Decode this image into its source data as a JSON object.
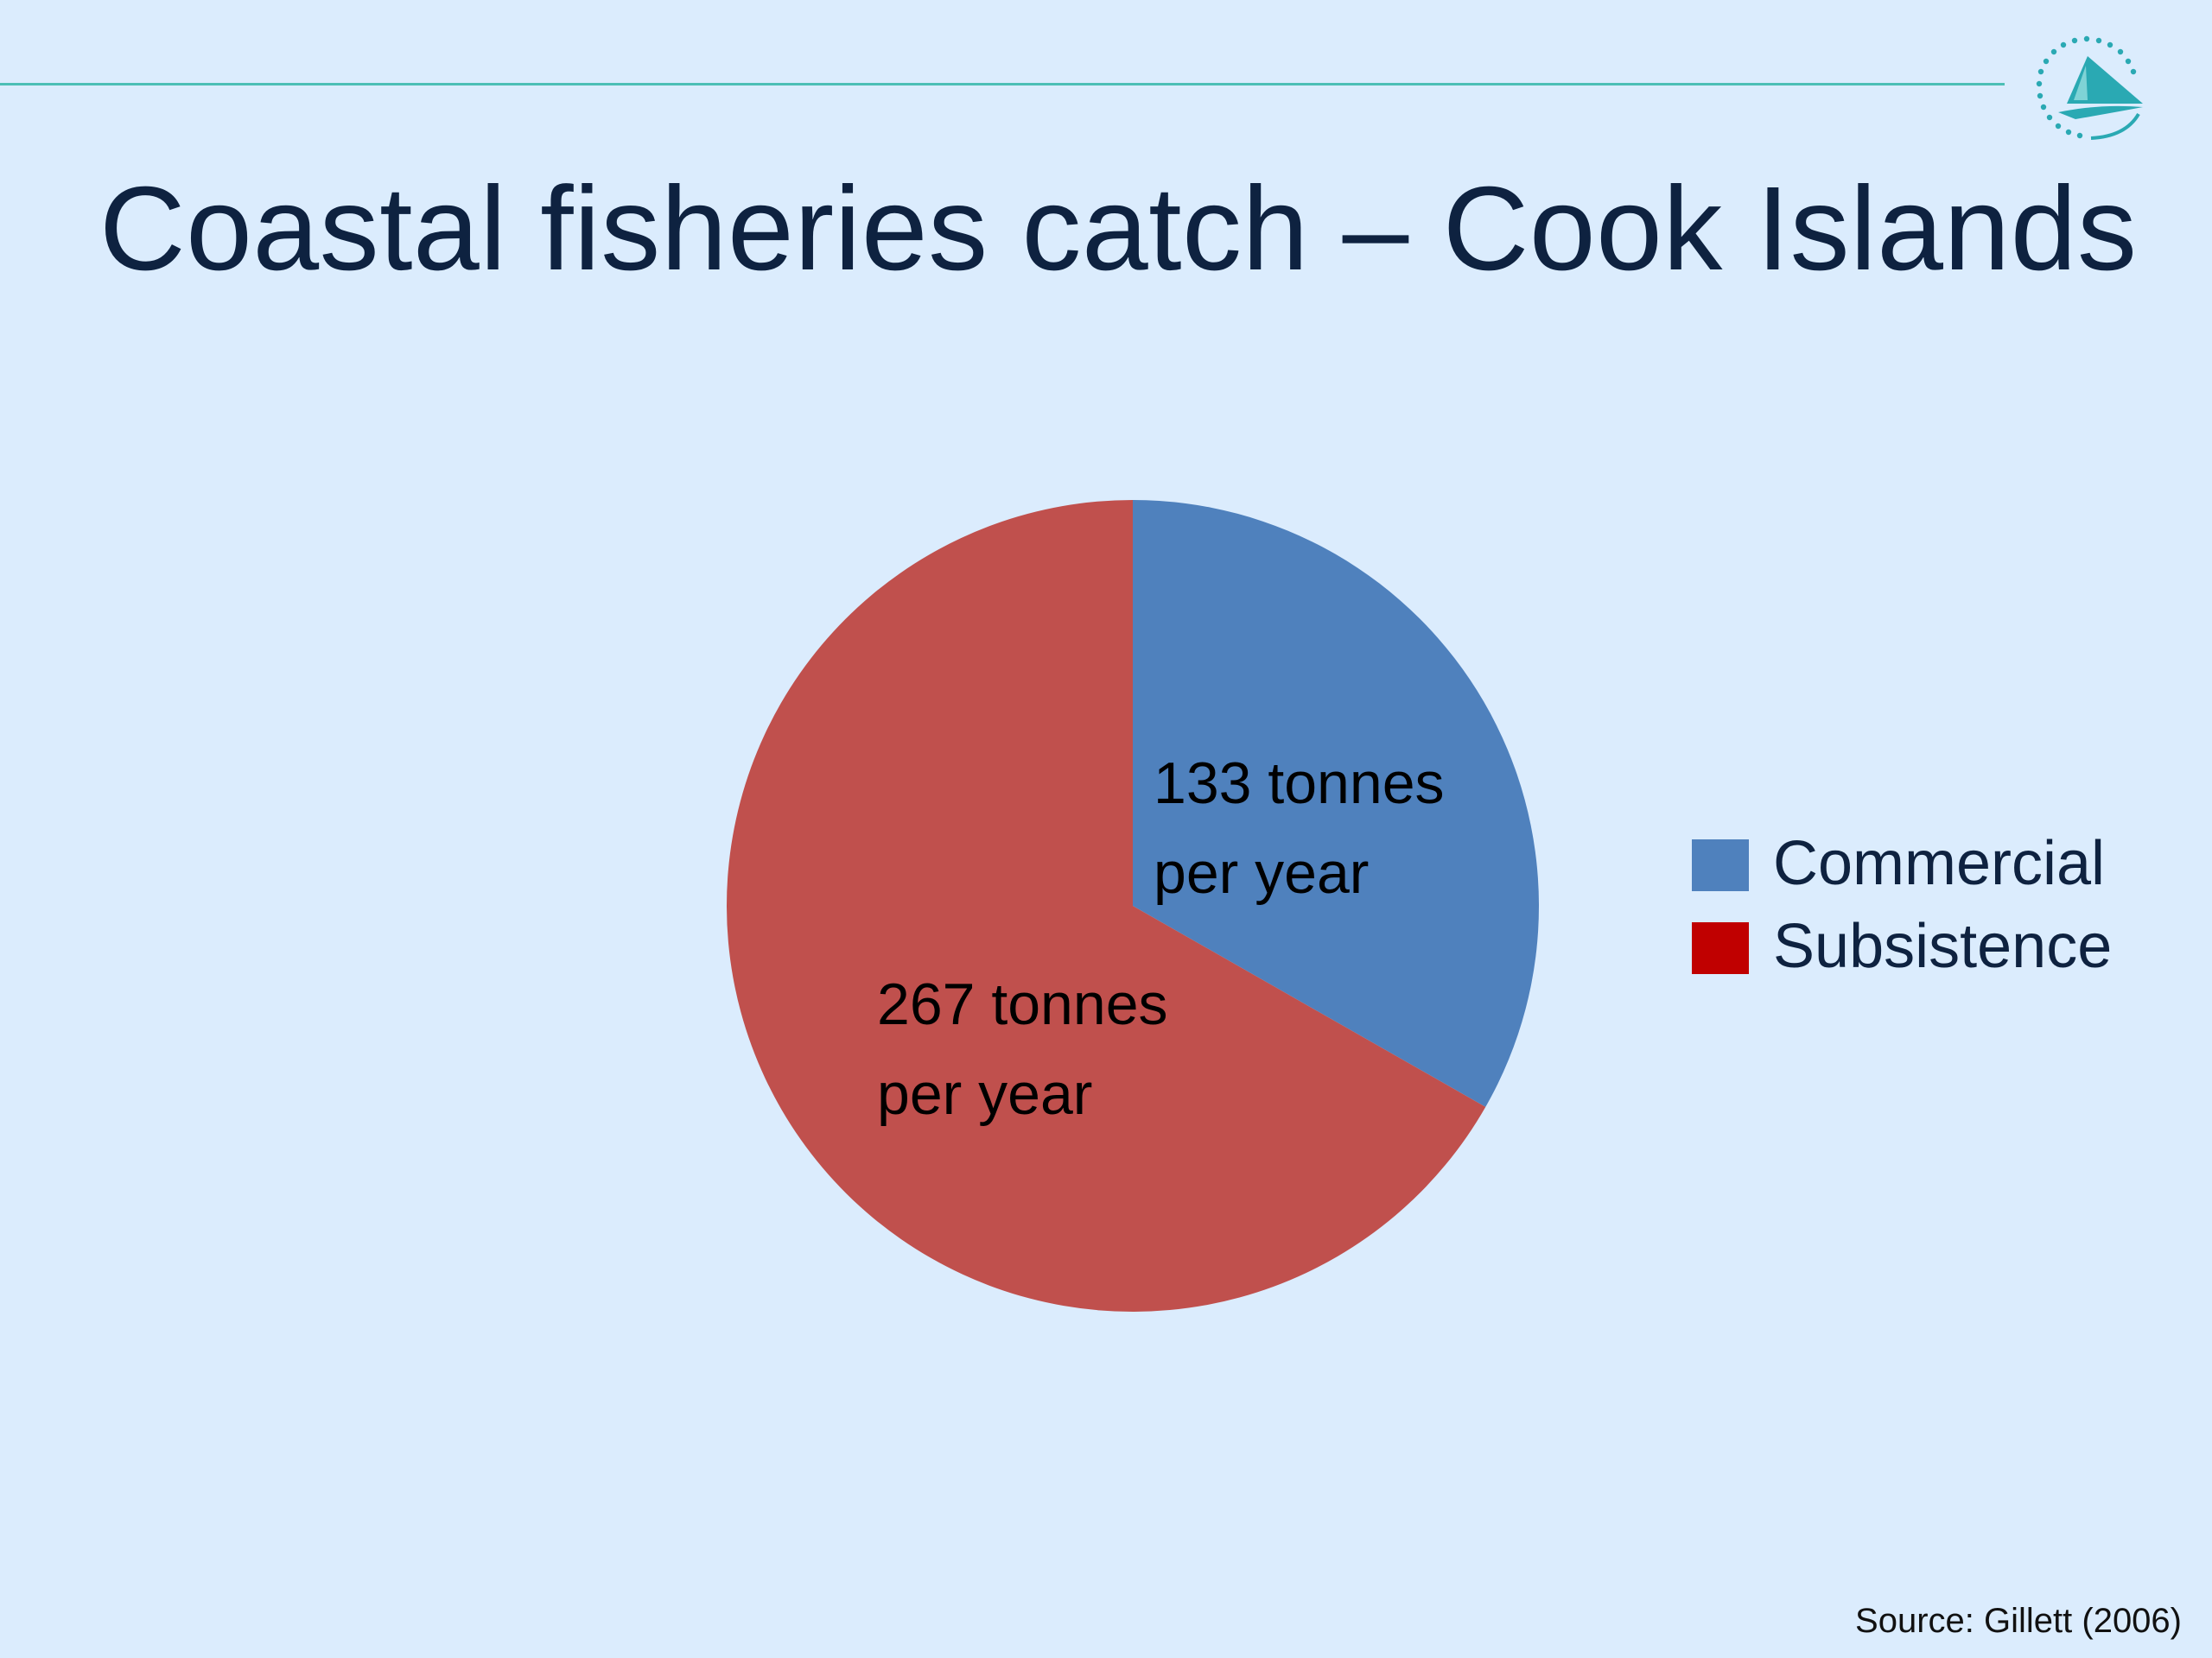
{
  "slide": {
    "title": "Coastal fisheries catch – Cook Islands",
    "source": "Source: Gillett (2006)"
  },
  "chart_data": {
    "type": "pie",
    "categories": [
      "Commercial",
      "Subsistence"
    ],
    "values": [
      133,
      267
    ],
    "units": "tonnes per year",
    "data_labels": [
      [
        "133 tonnes",
        "per year"
      ],
      [
        "267 tonnes",
        "per year"
      ]
    ],
    "colors": [
      "#4f81bd",
      "#c0504d"
    ],
    "legend_colors": [
      "#4f81bd",
      "#c00000"
    ],
    "legend_position": "right",
    "start_angle_deg": 0,
    "direction": "clockwise"
  },
  "colors": {
    "background": "#dbecfd",
    "title": "#0e2240",
    "rule": "#4cbfb5",
    "logo": "#2aa9b3"
  },
  "logo": {
    "icon": "sail-boat-logo"
  }
}
